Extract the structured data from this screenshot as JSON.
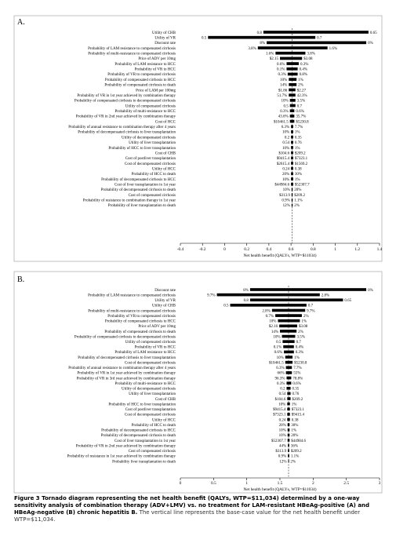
{
  "chart_data": [
    {
      "type": "tornado",
      "panel_label": "A.",
      "xlabel": "Net health benefit (QALYs, WTP=$11034)",
      "xlim": [
        -0.4,
        1.4
      ],
      "xticks": [
        "-0.4",
        "-0.2",
        "0",
        "0.2",
        "0.4",
        "0.6",
        "0.8",
        "1",
        "1.2",
        "1.4"
      ],
      "base_value": 0.61,
      "rows": [
        {
          "param": "Utility of CHB",
          "left": 0.8,
          "right": 0.65,
          "lo": 0.35,
          "hi": 1.3
        },
        {
          "param": "Utility of VR",
          "left": 0.5,
          "right": 0.7,
          "lo": -0.15,
          "hi": 0.82
        },
        {
          "param": "Discount rate",
          "left": "8%",
          "right": "0%",
          "lo": 0.38,
          "hi": 1.28
        },
        {
          "param": "Probability of LAM resistance to compensated cirrhosis",
          "left": "3.8%",
          "right": "1.6%",
          "lo": 0.3,
          "hi": 0.93
        },
        {
          "param": "Probability of multi-resistance to compensated cirrhosis",
          "left": "1.6%",
          "right": "3.8%",
          "lo": 0.46,
          "hi": 0.73
        },
        {
          "param": "Price of ADV per 10mg",
          "left": "$2.15",
          "right": "$3.08",
          "lo": 0.5,
          "hi": 0.7
        },
        {
          "param": "Probability of LAM resistance to HCC",
          "left": "0.6%",
          "right": "0.3%",
          "lo": 0.56,
          "hi": 0.67
        },
        {
          "param": "Probability of VR to HCC",
          "left": "0.1%",
          "right": "0.4%",
          "lo": 0.56,
          "hi": 0.66
        },
        {
          "param": "Probability of VR to compensated cirrhosis",
          "left": "0.3%",
          "right": "0.8%",
          "lo": 0.57,
          "hi": 0.66
        },
        {
          "param": "Probability of compensated cirrhosis to HCC",
          "left": "10%",
          "right": "1%",
          "lo": 0.58,
          "hi": 0.65
        },
        {
          "param": "Probability of compensated cirrhosis to death",
          "left": "14%",
          "right": "2%",
          "lo": 0.58,
          "hi": 0.65
        },
        {
          "param": "Price of LAM per 100mg",
          "left": "$1.86",
          "right": "$2.27",
          "lo": 0.58,
          "hi": 0.64
        },
        {
          "param": "Probability of VR in 1st year achieved by combination therapy",
          "left": "51.7%",
          "right": "42.3%",
          "lo": 0.58,
          "hi": 0.64
        },
        {
          "param": "Probability of compensated cirrhosis to decompensated cirrhosis",
          "left": "10%",
          "right": "3.5%",
          "lo": 0.59,
          "hi": 0.64
        },
        {
          "param": "Utility of compensated cirrhosis",
          "left": "0.5",
          "right": "0.7",
          "lo": 0.59,
          "hi": 0.64
        },
        {
          "param": "Probability of multi-resistance to HCC",
          "left": "0.3%",
          "right": "0.6%",
          "lo": 0.59,
          "hi": 0.63
        },
        {
          "param": "Probability of VR in 2nd year achieved by combination therapy",
          "left": "43.6%",
          "right": "35.7%",
          "lo": 0.59,
          "hi": 0.63
        },
        {
          "param": "Cost of HCC",
          "left": "$10461.5",
          "right": "$5230.8",
          "lo": 0.59,
          "hi": 0.63
        },
        {
          "param": "Probability of annual resistance to combination therapy after 4 years",
          "left": "6.3%",
          "right": "7.7%",
          "lo": 0.6,
          "hi": 0.62
        },
        {
          "param": "Probability of decompensated cirrhosis to liver transplantation",
          "left": "10%",
          "right": "1%",
          "lo": 0.6,
          "hi": 0.62
        },
        {
          "param": "Utility of decompensated cirrhosis",
          "left": "0.2",
          "right": "0.35",
          "lo": 0.6,
          "hi": 0.62
        },
        {
          "param": "Utility of liver transplantation",
          "left": "0.54",
          "right": "0.76",
          "lo": 0.6,
          "hi": 0.62
        },
        {
          "param": "Probability of HCC to liver transplantation",
          "left": "10%",
          "right": "1%",
          "lo": 0.6,
          "hi": 0.62
        },
        {
          "param": "Cost of CHB",
          "left": "$104.6",
          "right": "$209.2",
          "lo": 0.6,
          "hi": 0.62
        },
        {
          "param": "Cost of postliver transplantation",
          "left": "$9415.4",
          "right": "$7323.1",
          "lo": 0.6,
          "hi": 0.62
        },
        {
          "param": "Cost of decompensated cirrhosis",
          "left": "$2615.4",
          "right": "$1569.2",
          "lo": 0.6,
          "hi": 0.62
        },
        {
          "param": "Utility of HCC",
          "left": "0.24",
          "right": "0.38",
          "lo": 0.6,
          "hi": 0.62
        },
        {
          "param": "Probability of HCC to death",
          "left": "20%",
          "right": "30%",
          "lo": 0.6,
          "hi": 0.62
        },
        {
          "param": "Probability of decompensated cirrhosis to HCC",
          "left": "10%",
          "right": "1%",
          "lo": 0.6,
          "hi": 0.62
        },
        {
          "param": "Cost of liver transplantation in 1st year",
          "left": "$44984.6",
          "right": "$52307.7",
          "lo": 0.6,
          "hi": 0.62
        },
        {
          "param": "Probability of decompensated cirrhosis to death",
          "left": "10%",
          "right": "20%",
          "lo": 0.605,
          "hi": 0.615
        },
        {
          "param": "Cost of compensated cirrhosis",
          "left": "$313.9",
          "right": "$209.2",
          "lo": 0.605,
          "hi": 0.615
        },
        {
          "param": "Probability of resistance to combination therapy in 1st year",
          "left": "0.9%",
          "right": "1.1%",
          "lo": 0.605,
          "hi": 0.615
        },
        {
          "param": "Probability of liver transplantation to death",
          "left": "12%",
          "right": "2%",
          "lo": 0.605,
          "hi": 0.615
        }
      ]
    },
    {
      "type": "tornado",
      "panel_label": "B.",
      "xlabel": "Net health benefit (QALYs, WTP=$11034)",
      "xlim": [
        0,
        3
      ],
      "xticks": [
        "0",
        "0.5",
        "1",
        "1.5",
        "2",
        "2.5",
        "3"
      ],
      "base_value": 1.63,
      "rows": [
        {
          "param": "Discount rate",
          "left": "8%",
          "right": "0%",
          "lo": 1.05,
          "hi": 2.8
        },
        {
          "param": "Probability of LAM resistance to compensated cirrhosis",
          "left": "9.7%",
          "right": "2.8%",
          "lo": 0.55,
          "hi": 2.1
        },
        {
          "param": "Utility of VR",
          "left": 0.8,
          "right": 0.65,
          "lo": 1.05,
          "hi": 2.45
        },
        {
          "param": "Utility of CHB",
          "left": 0.5,
          "right": 0.7,
          "lo": 0.75,
          "hi": 1.9
        },
        {
          "param": "Probability of multi-resistance to compensated cirrhosis",
          "left": "2.8%",
          "right": "9.7%",
          "lo": 1.38,
          "hi": 1.88
        },
        {
          "param": "Probability of VR to compensated cirrhosis",
          "left": "0.7%",
          "right": "2%",
          "lo": 1.43,
          "hi": 1.83
        },
        {
          "param": "Probability of compensated cirrhosis to HCC",
          "left": "10%",
          "right": "1%",
          "lo": 1.47,
          "hi": 1.8
        },
        {
          "param": "Price of ADV per 10mg",
          "left": "$2.16",
          "right": "$3.08",
          "lo": 1.49,
          "hi": 1.76
        },
        {
          "param": "Probability of compensated cirrhosis to death",
          "left": "14%",
          "right": "2%",
          "lo": 1.5,
          "hi": 1.75
        },
        {
          "param": "Probability of compensated cirrhosis to decompensated cirrhosis",
          "left": "10%",
          "right": "3.5%",
          "lo": 1.53,
          "hi": 1.73
        },
        {
          "param": "Utility of compensated cirrhosis",
          "left": "0.5",
          "right": "0.7",
          "lo": 1.54,
          "hi": 1.72
        },
        {
          "param": "Probability of VR to HCC",
          "left": "0.1%",
          "right": "0.4%",
          "lo": 1.55,
          "hi": 1.71
        },
        {
          "param": "Probability of LAM resistance to HCC",
          "left": "0.6%",
          "right": "0.3%",
          "lo": 1.56,
          "hi": 1.71
        },
        {
          "param": "Probability of decompensated cirrhosis to liver transplantation",
          "left": "10%",
          "right": "1%",
          "lo": 1.58,
          "hi": 1.69
        },
        {
          "param": "Cost of decompensated cirrhosis",
          "left": "$10461.5",
          "right": "$5230.8",
          "lo": 1.58,
          "hi": 1.69
        },
        {
          "param": "Probability of annual resistance to combination therapy after 4 years",
          "left": "6.3%",
          "right": "7.7%",
          "lo": 1.59,
          "hi": 1.68
        },
        {
          "param": "Probability of VR in 1st year achieved by combination therapy",
          "left": "66%",
          "right": "55%",
          "lo": 1.59,
          "hi": 1.68
        },
        {
          "param": "Probability of VR in 3rd year achieved by combination therapy",
          "left": "96.3%",
          "right": "78.8%",
          "lo": 1.6,
          "hi": 1.67
        },
        {
          "param": "Probability of multi-resistance to HCC",
          "left": "0.3%",
          "right": "0.6%",
          "lo": 1.6,
          "hi": 1.67
        },
        {
          "param": "Utility of decompensated cirrhosis",
          "left": "0.2",
          "right": "0.35",
          "lo": 1.6,
          "hi": 1.66
        },
        {
          "param": "Utility of liver transplantation",
          "left": "0.54",
          "right": "0.76",
          "lo": 1.61,
          "hi": 1.66
        },
        {
          "param": "Cost of CHB",
          "left": "$104.6",
          "right": "$209.2",
          "lo": 1.61,
          "hi": 1.66
        },
        {
          "param": "Probability of HCC to liver transplantation",
          "left": "10%",
          "right": "1%",
          "lo": 1.61,
          "hi": 1.65
        },
        {
          "param": "Cost of postliver transplantation",
          "left": "$9415.4",
          "right": "$7323.1",
          "lo": 1.61,
          "hi": 1.65
        },
        {
          "param": "Cost of decompensated cirrhosis",
          "left": "$7323.1",
          "right": "$9415.4",
          "lo": 1.61,
          "hi": 1.65
        },
        {
          "param": "Utility of HCC",
          "left": "0.24",
          "right": "0.38",
          "lo": 1.61,
          "hi": 1.65
        },
        {
          "param": "Probability of HCC to death",
          "left": "20%",
          "right": "30%",
          "lo": 1.615,
          "hi": 1.645
        },
        {
          "param": "Probability of decompensated cirrhosis to HCC",
          "left": "10%",
          "right": "1%",
          "lo": 1.615,
          "hi": 1.645
        },
        {
          "param": "Probability of decompensated cirrhosis to death",
          "left": "10%",
          "right": "20%",
          "lo": 1.615,
          "hi": 1.645
        },
        {
          "param": "Cost of liver transplantation in 1st year",
          "left": "$52307.7",
          "right": "$44984.6",
          "lo": 1.615,
          "hi": 1.645
        },
        {
          "param": "Probability of VR in 2nd year achieved by combination therapy",
          "left": "44%",
          "right": "36%",
          "lo": 1.62,
          "hi": 1.64
        },
        {
          "param": "Cost of compensated cirrhosis",
          "left": "$313.9",
          "right": "$209.2",
          "lo": 1.62,
          "hi": 1.64
        },
        {
          "param": "Probability of resistance in 1st year achieved by combination therapy",
          "left": "0.9%",
          "right": "1.1%",
          "lo": 1.62,
          "hi": 1.64
        },
        {
          "param": "Probability liver transplantation to death",
          "left": "12%",
          "right": "2%",
          "lo": 1.625,
          "hi": 1.635
        }
      ]
    }
  ],
  "caption": {
    "bold": "Figure 3 Tornado diagram representing the net health benefit (QALYs, WTP=$11,034) determined by a one-way sensitivity analysis of combination therapy (ADV+LMV) vs. no treatment for LAM-resistant HBeAg-positive (A) and HBeAg-negative (B) chronic hepatitis B.",
    "note": "The vertical line represents the base-case value for the net health benefit under WTP=$11,034."
  }
}
